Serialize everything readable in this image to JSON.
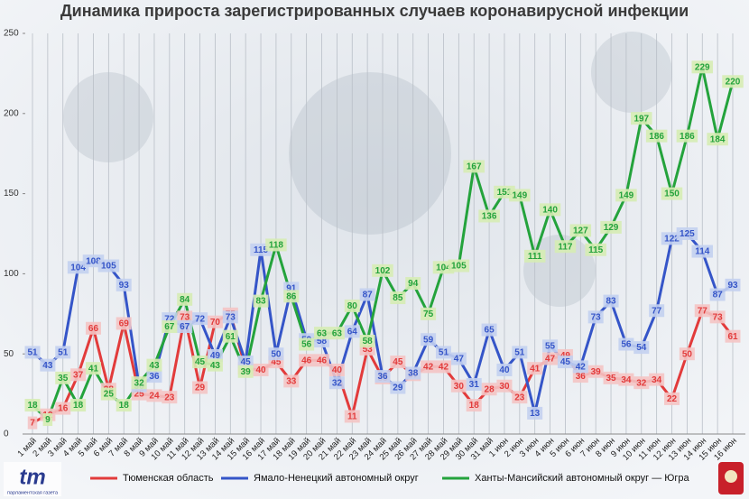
{
  "chart_data": {
    "type": "line",
    "title": "Динамика прироста зарегистрированных случаев коронавирусной инфекции",
    "categories": [
      "1 май",
      "2 май",
      "3 май",
      "4 май",
      "5 май",
      "6 май",
      "7 май",
      "8 май",
      "9 май",
      "10 май",
      "11 май",
      "12 май",
      "13 май",
      "14 май",
      "15 май",
      "16 май",
      "17 май",
      "18 май",
      "19 май",
      "20 май",
      "21 май",
      "22 май",
      "23 май",
      "24 май",
      "25 май",
      "26 май",
      "27 май",
      "28 май",
      "29 май",
      "30 май",
      "31 май",
      "1 июн",
      "2 июн",
      "3 июн",
      "4 июн",
      "5 июн",
      "6 июн",
      "7 июн",
      "8 июн",
      "9 июн",
      "10 июн",
      "11 июн",
      "12 июн",
      "13 июн",
      "14 июн",
      "15 июн",
      "16 июн"
    ],
    "series": [
      {
        "name": "Тюменская область",
        "color": "#e23b3b",
        "label_bg": "#f4c4c4",
        "values": [
          7,
          12,
          16,
          37,
          66,
          28,
          69,
          25,
          24,
          23,
          73,
          29,
          70,
          75,
          41,
          40,
          45,
          33,
          46,
          46,
          40,
          11,
          53,
          35,
          45,
          37,
          42,
          42,
          30,
          18,
          28,
          30,
          23,
          41,
          47,
          49,
          36,
          39,
          35,
          34,
          32,
          34,
          22,
          50,
          77,
          73,
          61
        ]
      },
      {
        "name": "Ямало-Ненецкий автономный округ",
        "color": "#3555c8",
        "label_bg": "#c3d0ef",
        "values": [
          51,
          43,
          51,
          104,
          108,
          105,
          93,
          30,
          36,
          72,
          67,
          72,
          49,
          73,
          45,
          115,
          50,
          91,
          59,
          58,
          32,
          64,
          87,
          36,
          29,
          38,
          59,
          51,
          47,
          31,
          65,
          40,
          51,
          13,
          55,
          45,
          42,
          73,
          83,
          56,
          54,
          77,
          122,
          125,
          114,
          87,
          93
        ]
      },
      {
        "name": "Ханты-Мансийский автономный округ — Югра",
        "color": "#24a33c",
        "label_bg": "#d6ecb4",
        "values": [
          18,
          9,
          35,
          18,
          41,
          25,
          18,
          32,
          43,
          67,
          84,
          45,
          43,
          61,
          39,
          83,
          118,
          86,
          56,
          63,
          63,
          80,
          58,
          102,
          85,
          94,
          75,
          104,
          105,
          167,
          136,
          151,
          149,
          111,
          140,
          117,
          127,
          115,
          129,
          149,
          197,
          186,
          150,
          186,
          229,
          184,
          220
        ]
      }
    ],
    "ylim": [
      0,
      250
    ],
    "yticks": [
      0,
      50,
      100,
      150,
      200,
      250
    ],
    "grid": "x",
    "logo": [
      "tm",
      "парламентская газета"
    ]
  }
}
